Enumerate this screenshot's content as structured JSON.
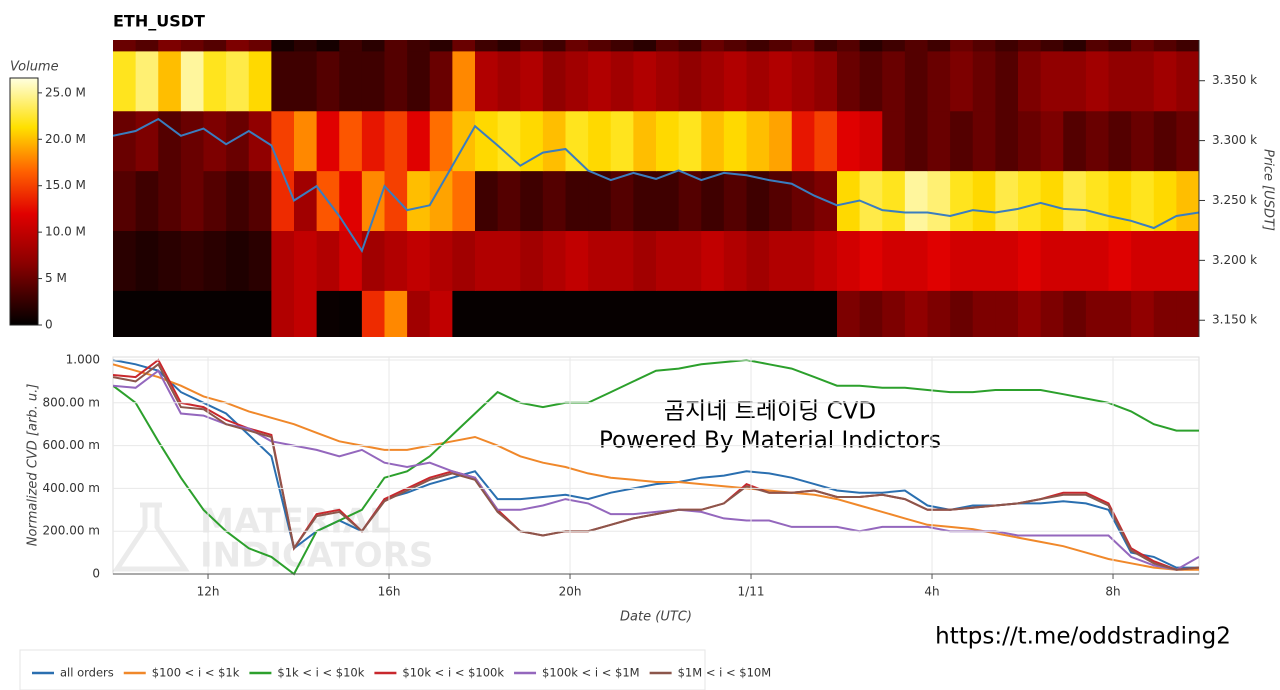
{
  "chart_data": [
    {
      "type": "heatmap",
      "title": "ETH_USDT",
      "x_bins": [
        9.9,
        10.4,
        10.9,
        11.4,
        11.9,
        12.4,
        12.9,
        13.4,
        13.9,
        14.4,
        14.9,
        15.4,
        15.9,
        16.4,
        16.9,
        17.4,
        17.9,
        18.4,
        18.9,
        19.4,
        19.9,
        20.4,
        20.9,
        21.4,
        21.9,
        22.4,
        22.9,
        23.4,
        23.9,
        24.4,
        24.9,
        25.4,
        25.9,
        26.4,
        26.9,
        27.4,
        27.9,
        28.4,
        28.9,
        29.4,
        29.9,
        30.4,
        30.9,
        31.4,
        31.9,
        32.4,
        32.9,
        33.4,
        33.9
      ],
      "y_bins": [
        3125,
        3175,
        3225,
        3275,
        3325,
        3375,
        3425
      ],
      "z": [
        [
          300000.0,
          300000.0,
          300000.0,
          300000.0,
          300000.0,
          300000.0,
          300000.0,
          9000000.0,
          10000000.0,
          500000.0,
          300000.0,
          14000000.0,
          18000000.0,
          8000000.0,
          10000000.0,
          300000.0,
          300000.0,
          300000.0,
          300000.0,
          300000.0,
          300000.0,
          300000.0,
          300000.0,
          300000.0,
          300000.0,
          300000.0,
          300000.0,
          300000.0,
          300000.0,
          300000.0,
          300000.0,
          300000.0,
          6000000.0,
          5000000.0,
          6000000.0,
          7000000.0,
          6000000.0,
          5000000.0,
          6000000.0,
          6000000.0,
          7000000.0,
          6000000.0,
          5000000.0,
          6000000.0,
          6000000.0,
          7000000.0,
          6000000.0,
          6000000.0
        ],
        [
          2000000.0,
          1500000.0,
          2000000.0,
          2500000.0,
          2000000.0,
          1500000.0,
          2000000.0,
          9000000.0,
          10000000.0,
          9000000.0,
          11000000.0,
          8000000.0,
          9000000.0,
          10000000.0,
          9000000.0,
          8000000.0,
          9000000.0,
          9000000.0,
          8000000.0,
          9000000.0,
          10000000.0,
          9000000.0,
          9000000.0,
          8000000.0,
          9000000.0,
          9000000.0,
          10000000.0,
          9000000.0,
          8000000.0,
          9000000.0,
          9000000.0,
          10000000.0,
          11000000.0,
          12000000.0,
          11000000.0,
          11000000.0,
          12000000.0,
          11000000.0,
          11000000.0,
          11000000.0,
          12000000.0,
          11000000.0,
          11000000.0,
          11000000.0,
          12000000.0,
          11000000.0,
          11000000.0,
          11000000.0
        ],
        [
          4000000.0,
          3000000.0,
          4000000.0,
          5000000.0,
          4000000.0,
          3000000.0,
          4000000.0,
          14000000.0,
          8000000.0,
          16000000.0,
          12000000.0,
          18000000.0,
          15000000.0,
          20000000.0,
          19000000.0,
          17000000.0,
          3000000.0,
          4000000.0,
          3000000.0,
          4000000.0,
          3000000.0,
          3000000.0,
          4000000.0,
          3000000.0,
          3000000.0,
          4000000.0,
          3000000.0,
          4000000.0,
          3000000.0,
          4000000.0,
          5000000.0,
          6000000.0,
          21000000.0,
          23000000.0,
          22000000.0,
          25000000.0,
          24000000.0,
          22000000.0,
          21000000.0,
          23000000.0,
          22000000.0,
          21000000.0,
          23000000.0,
          22000000.0,
          21000000.0,
          22000000.0,
          21000000.0,
          20000000.0
        ],
        [
          5000000.0,
          6000000.0,
          4000000.0,
          5000000.0,
          6000000.0,
          5000000.0,
          7000000.0,
          15000000.0,
          18000000.0,
          12000000.0,
          16000000.0,
          13000000.0,
          15000000.0,
          12000000.0,
          17000000.0,
          20000000.0,
          21000000.0,
          22000000.0,
          21000000.0,
          20000000.0,
          22000000.0,
          21000000.0,
          22000000.0,
          20000000.0,
          21000000.0,
          22000000.0,
          20000000.0,
          21000000.0,
          20000000.0,
          19000000.0,
          13000000.0,
          15000000.0,
          12000000.0,
          11000000.0,
          5000000.0,
          4000000.0,
          5000000.0,
          4000000.0,
          5000000.0,
          4000000.0,
          5000000.0,
          6000000.0,
          4000000.0,
          5000000.0,
          4000000.0,
          5000000.0,
          4000000.0,
          5000000.0
        ],
        [
          22000000.0,
          24000000.0,
          20000000.0,
          25000000.0,
          22000000.0,
          23000000.0,
          21000000.0,
          3000000.0,
          3000000.0,
          4000000.0,
          3000000.0,
          3000000.0,
          4000000.0,
          3000000.0,
          5000000.0,
          18000000.0,
          9000000.0,
          8000000.0,
          9000000.0,
          7000000.0,
          8000000.0,
          9000000.0,
          8000000.0,
          9000000.0,
          8000000.0,
          7000000.0,
          8000000.0,
          9000000.0,
          8000000.0,
          9000000.0,
          8000000.0,
          7000000.0,
          5000000.0,
          4000000.0,
          5000000.0,
          4000000.0,
          5000000.0,
          6000000.0,
          5000000.0,
          4000000.0,
          6000000.0,
          7000000.0,
          7000000.0,
          8000000.0,
          7000000.0,
          7000000.0,
          8000000.0,
          7000000.0
        ],
        [
          5000000.0,
          4000000.0,
          6000000.0,
          5000000.0,
          4000000.0,
          6000000.0,
          5000000.0,
          1000000.0,
          2000000.0,
          1000000.0,
          3000000.0,
          2000000.0,
          4000000.0,
          3000000.0,
          2000000.0,
          5000000.0,
          3000000.0,
          2000000.0,
          4000000.0,
          3000000.0,
          5000000.0,
          4000000.0,
          3000000.0,
          2000000.0,
          4000000.0,
          3000000.0,
          5000000.0,
          4000000.0,
          3000000.0,
          4000000.0,
          5000000.0,
          3000000.0,
          4000000.0,
          2000000.0,
          3000000.0,
          4000000.0,
          3000000.0,
          5000000.0,
          4000000.0,
          3000000.0,
          4000000.0,
          3000000.0,
          2000000.0,
          4000000.0,
          3000000.0,
          5000000.0,
          4000000.0,
          3000000.0
        ]
      ],
      "zlim": [
        0,
        26600000
      ],
      "zticks": [
        0,
        {
          "value": 5000000,
          "label": "5 M"
        },
        {
          "value": 10000000,
          "label": "10.0 M"
        },
        {
          "value": 15000000,
          "label": "15.0 M"
        },
        {
          "value": 20000000,
          "label": "20.0 M"
        },
        {
          "value": 25000000,
          "label": "25.0 M"
        }
      ],
      "zlabel": "Volume",
      "xlim": [
        9.9,
        33.9
      ],
      "ylim": [
        3136,
        3384
      ],
      "yticks": [
        {
          "value": 3150,
          "label": "3.150 k"
        },
        {
          "value": 3200,
          "label": "3.200 k"
        },
        {
          "value": 3250,
          "label": "3.250 k"
        },
        {
          "value": 3300,
          "label": "3.300 k"
        },
        {
          "value": 3350,
          "label": "3.350 k"
        }
      ],
      "ylabel": "Price [USDT]",
      "line": {
        "color": "#3a7dbf",
        "x": [
          9.9,
          10.4,
          10.9,
          11.4,
          11.9,
          12.4,
          12.9,
          13.4,
          13.9,
          14.4,
          14.9,
          15.4,
          15.9,
          16.4,
          16.9,
          17.4,
          17.9,
          18.4,
          18.9,
          19.4,
          19.9,
          20.4,
          20.9,
          21.4,
          21.9,
          22.4,
          22.9,
          23.4,
          23.9,
          24.4,
          24.9,
          25.4,
          25.9,
          26.4,
          26.9,
          27.4,
          27.9,
          28.4,
          28.9,
          29.4,
          29.9,
          30.4,
          30.9,
          31.4,
          31.9,
          32.4,
          32.9,
          33.4,
          33.9
        ],
        "values": [
          3304,
          3308,
          3318,
          3304,
          3310,
          3297,
          3308,
          3296,
          3250,
          3262,
          3237,
          3208,
          3262,
          3242,
          3246,
          3279,
          3312,
          3296,
          3279,
          3290,
          3293,
          3275,
          3267,
          3273,
          3268,
          3275,
          3267,
          3273,
          3271,
          3267,
          3264,
          3254,
          3246,
          3250,
          3242,
          3240,
          3240,
          3237,
          3242,
          3240,
          3243,
          3248,
          3243,
          3242,
          3237,
          3233,
          3227,
          3237,
          3240
        ]
      }
    },
    {
      "type": "line",
      "x": [
        9.9,
        10.4,
        10.9,
        11.4,
        11.9,
        12.4,
        12.9,
        13.4,
        13.9,
        14.4,
        14.9,
        15.4,
        15.9,
        16.4,
        16.9,
        17.4,
        17.9,
        18.4,
        18.9,
        19.4,
        19.9,
        20.4,
        20.9,
        21.4,
        21.9,
        22.4,
        22.9,
        23.4,
        23.9,
        24.4,
        24.9,
        25.4,
        25.9,
        26.4,
        26.9,
        27.4,
        27.9,
        28.4,
        28.9,
        29.4,
        29.9,
        30.4,
        30.9,
        31.4,
        31.9,
        32.4,
        32.9,
        33.4,
        33.9
      ],
      "series": [
        {
          "name": "all orders",
          "color": "#2a6fb0",
          "values": [
            1.0,
            0.98,
            0.95,
            0.85,
            0.8,
            0.75,
            0.65,
            0.55,
            0.12,
            0.2,
            0.25,
            0.2,
            0.35,
            0.38,
            0.42,
            0.45,
            0.48,
            0.35,
            0.35,
            0.36,
            0.37,
            0.35,
            0.38,
            0.4,
            0.42,
            0.43,
            0.45,
            0.46,
            0.48,
            0.47,
            0.45,
            0.42,
            0.39,
            0.38,
            0.38,
            0.39,
            0.32,
            0.3,
            0.32,
            0.32,
            0.33,
            0.33,
            0.34,
            0.33,
            0.3,
            0.1,
            0.08,
            0.03,
            0.03
          ]
        },
        {
          "name": "$100 < i < $1k",
          "color": "#f0882a",
          "values": [
            0.98,
            0.95,
            0.92,
            0.88,
            0.83,
            0.8,
            0.76,
            0.73,
            0.7,
            0.66,
            0.62,
            0.6,
            0.58,
            0.58,
            0.6,
            0.62,
            0.64,
            0.6,
            0.55,
            0.52,
            0.5,
            0.47,
            0.45,
            0.44,
            0.43,
            0.43,
            0.42,
            0.41,
            0.4,
            0.39,
            0.38,
            0.37,
            0.35,
            0.32,
            0.29,
            0.26,
            0.23,
            0.22,
            0.21,
            0.19,
            0.17,
            0.15,
            0.13,
            0.1,
            0.07,
            0.05,
            0.03,
            0.02,
            0.02
          ]
        },
        {
          "name": "$1k < i < $10k",
          "color": "#2ca02c",
          "values": [
            0.88,
            0.8,
            0.62,
            0.45,
            0.3,
            0.2,
            0.12,
            0.08,
            0,
            0.2,
            0.25,
            0.3,
            0.45,
            0.48,
            0.55,
            0.65,
            0.75,
            0.85,
            0.8,
            0.78,
            0.8,
            0.8,
            0.85,
            0.9,
            0.95,
            0.96,
            0.98,
            0.99,
            1.0,
            0.98,
            0.96,
            0.92,
            0.88,
            0.88,
            0.87,
            0.87,
            0.86,
            0.85,
            0.85,
            0.86,
            0.86,
            0.86,
            0.84,
            0.82,
            0.8,
            0.76,
            0.7,
            0.67,
            0.67
          ]
        },
        {
          "name": "$10k < i < $100k",
          "color": "#c8282d",
          "values": [
            0.93,
            0.92,
            1.0,
            0.8,
            0.78,
            0.72,
            0.68,
            0.65,
            0.12,
            0.28,
            0.3,
            0.2,
            0.35,
            0.4,
            0.45,
            0.48,
            0.45,
            0.3,
            0.2,
            0.18,
            0.2,
            0.2,
            0.23,
            0.26,
            0.28,
            0.3,
            0.3,
            0.33,
            0.42,
            0.38,
            0.38,
            0.39,
            0.36,
            0.36,
            0.37,
            0.35,
            0.3,
            0.3,
            0.31,
            0.32,
            0.33,
            0.35,
            0.38,
            0.38,
            0.33,
            0.12,
            0.06,
            0.02,
            0.03
          ]
        },
        {
          "name": "$100k < i < $1M",
          "color": "#9467bd",
          "values": [
            0.88,
            0.87,
            0.95,
            0.75,
            0.74,
            0.7,
            0.68,
            0.62,
            0.6,
            0.58,
            0.55,
            0.58,
            0.52,
            0.5,
            0.52,
            0.48,
            0.45,
            0.3,
            0.3,
            0.32,
            0.35,
            0.33,
            0.28,
            0.28,
            0.29,
            0.3,
            0.29,
            0.26,
            0.25,
            0.25,
            0.22,
            0.22,
            0.22,
            0.2,
            0.22,
            0.22,
            0.22,
            0.2,
            0.2,
            0.2,
            0.18,
            0.18,
            0.18,
            0.18,
            0.18,
            0.08,
            0.04,
            0.02,
            0.08
          ]
        },
        {
          "name": "$1M < i < $10M",
          "color": "#8c564b",
          "values": [
            0.92,
            0.9,
            0.98,
            0.78,
            0.77,
            0.7,
            0.67,
            0.64,
            0.12,
            0.27,
            0.29,
            0.2,
            0.34,
            0.39,
            0.44,
            0.47,
            0.44,
            0.29,
            0.2,
            0.18,
            0.2,
            0.2,
            0.23,
            0.26,
            0.28,
            0.3,
            0.3,
            0.33,
            0.41,
            0.38,
            0.38,
            0.39,
            0.36,
            0.36,
            0.37,
            0.35,
            0.3,
            0.3,
            0.31,
            0.32,
            0.33,
            0.35,
            0.37,
            0.37,
            0.32,
            0.11,
            0.05,
            0.02,
            0.03
          ]
        }
      ],
      "xlim": [
        9.9,
        33.9
      ],
      "xticks": [
        {
          "value": 12,
          "label": "12h"
        },
        {
          "value": 16,
          "label": "16h"
        },
        {
          "value": 20,
          "label": "20h"
        },
        {
          "value": 24,
          "label": "1/11"
        },
        {
          "value": 28,
          "label": "4h"
        },
        {
          "value": 32,
          "label": "8h"
        }
      ],
      "ylim": [
        0,
        1
      ],
      "yticks": [
        0,
        {
          "value": 0.2,
          "label": "200.00 m"
        },
        {
          "value": 0.4,
          "label": "400.00 m"
        },
        {
          "value": 0.6,
          "label": "600.00 m"
        },
        {
          "value": 0.8,
          "label": "800.00 m"
        },
        {
          "value": 1,
          "label": "1.000"
        }
      ],
      "xlabel": "Date (UTC)",
      "ylabel": "Normalized CVD [arb. u.]",
      "grid": true,
      "legend": "bottom",
      "annotations": [
        "곰지네 트레이딩 CVD",
        "Powered By Material Indictors"
      ],
      "watermark": [
        "MATERIAL",
        "INDICATORS"
      ]
    }
  ],
  "link": "https://t.me/oddstrading2"
}
